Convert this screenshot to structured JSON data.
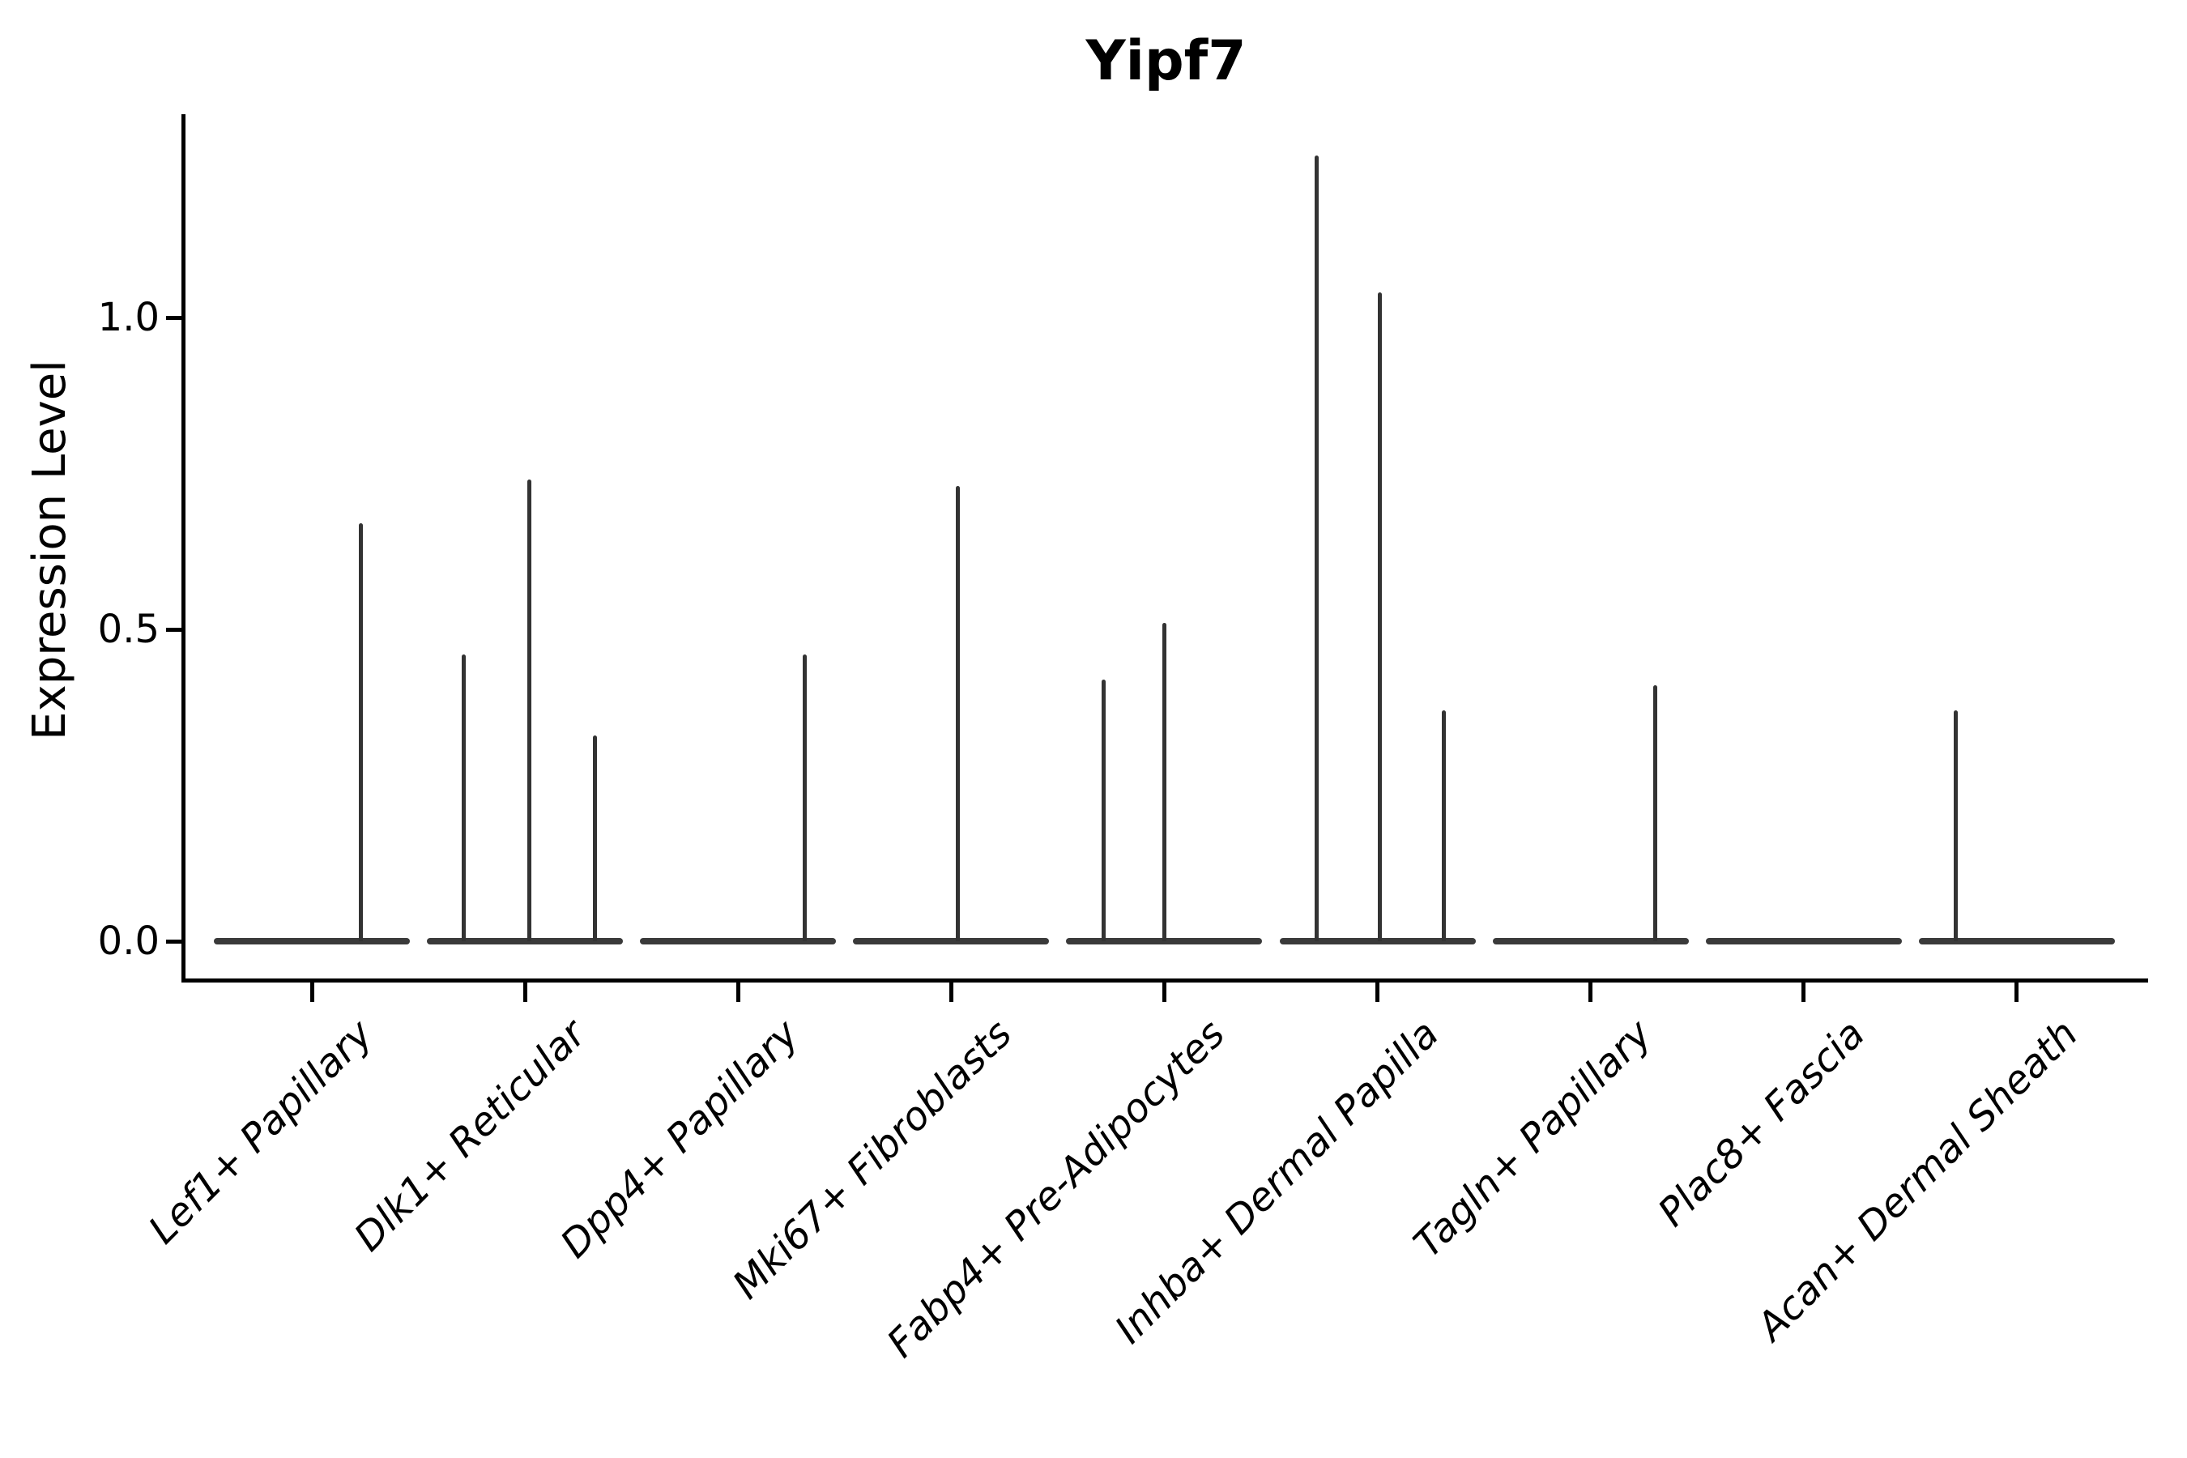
{
  "figure": {
    "title": "Yipf7",
    "y_axis": {
      "label": "Expression Level",
      "tick_labels": [
        "1.0",
        "0.5",
        "0.0"
      ]
    },
    "colors": {
      "violin": "#3a3a3a",
      "spike": "#333333",
      "axis": "#000000",
      "background": "#ffffff"
    }
  },
  "chart_data": {
    "type": "violin",
    "title": "Yipf7",
    "ylabel": "Expression Level",
    "xlabel": "",
    "yticks": [
      0.0,
      0.5,
      1.0
    ],
    "ylim": [
      0,
      1.33
    ],
    "grid": false,
    "legend": "none",
    "categories": [
      "Lef1+ Papillary",
      "Dlk1+ Reticular",
      "Dpp4+ Papillary",
      "Mki67+ Fibroblasts",
      "Fabp4+ Pre-Adipocytes",
      "Inhba+ Dermal Papilla",
      "Tagln+ Papillary",
      "Plac8+ Fascia",
      "Acan+ Dermal Sheath"
    ],
    "series": [
      {
        "category": "Lef1+ Papillary",
        "baseline_value": 0.0,
        "spikes": [
          {
            "value": 0.67,
            "offset": 60
          }
        ]
      },
      {
        "category": "Dlk1+ Reticular",
        "baseline_value": 0.0,
        "spikes": [
          {
            "value": 0.46,
            "offset": -76
          },
          {
            "value": 0.74,
            "offset": 5
          },
          {
            "value": 0.33,
            "offset": 86
          }
        ]
      },
      {
        "category": "Dpp4+ Papillary",
        "baseline_value": 0.0,
        "spikes": [
          {
            "value": 0.46,
            "offset": 82
          }
        ]
      },
      {
        "category": "Mki67+ Fibroblasts",
        "baseline_value": 0.0,
        "spikes": [
          {
            "value": 0.73,
            "offset": 8
          }
        ]
      },
      {
        "category": "Fabp4+ Pre-Adipocytes",
        "baseline_value": 0.0,
        "spikes": [
          {
            "value": 0.42,
            "offset": -75
          },
          {
            "value": 0.51,
            "offset": 0
          }
        ]
      },
      {
        "category": "Inhba+ Dermal Papilla",
        "baseline_value": 0.0,
        "spikes": [
          {
            "value": 1.26,
            "offset": -75
          },
          {
            "value": 1.04,
            "offset": 3
          },
          {
            "value": 0.37,
            "offset": 82
          }
        ]
      },
      {
        "category": "Tagln+ Papillary",
        "baseline_value": 0.0,
        "spikes": [
          {
            "value": 0.41,
            "offset": 80
          }
        ]
      },
      {
        "category": "Plac8+ Fascia",
        "baseline_value": 0.0,
        "spikes": []
      },
      {
        "category": "Acan+ Dermal Sheath",
        "baseline_value": 0.0,
        "spikes": [
          {
            "value": 0.37,
            "offset": -75
          }
        ]
      }
    ],
    "description": "Violin plot of Yipf7 expression per fibroblast cluster; every violin is collapsed to a flat line at 0 with thin vertical spikes marking rare expressing cells."
  }
}
